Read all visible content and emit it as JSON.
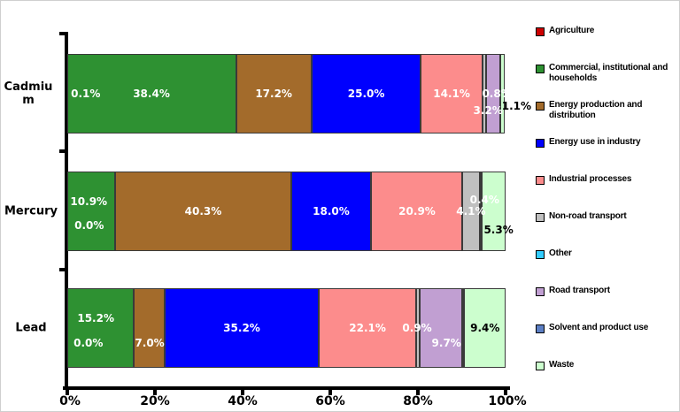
{
  "chart_data": {
    "type": "bar",
    "stacked": true,
    "orientation": "horizontal",
    "legend_position": "right",
    "xlim": [
      0,
      100
    ],
    "x_ticks": [
      "0%",
      "20%",
      "40%",
      "60%",
      "80%",
      "100%"
    ],
    "categories": [
      "Cadmium",
      "Mercury",
      "Lead"
    ],
    "series": [
      {
        "name": "Agriculture",
        "color": "#CC0000",
        "values": [
          0.1,
          0.0,
          0.0
        ]
      },
      {
        "name": "Commercial, institutional and households",
        "color": "#2E9132",
        "values": [
          38.4,
          10.9,
          15.2
        ]
      },
      {
        "name": "Energy production and distribution",
        "color": "#A36B2B",
        "values": [
          17.2,
          40.3,
          7.0
        ]
      },
      {
        "name": "Energy use in industry",
        "color": "#0000FE",
        "values": [
          25.0,
          18.0,
          35.2
        ]
      },
      {
        "name": "Industrial processes",
        "color": "#FC8C8C",
        "values": [
          14.1,
          20.9,
          22.1
        ]
      },
      {
        "name": "Non-road transport",
        "color": "#C0C0C0",
        "values": [
          0.8,
          4.1,
          0.9
        ]
      },
      {
        "name": "Other",
        "color": "#33CCFF",
        "values": [
          0.0,
          0.0,
          0.0
        ]
      },
      {
        "name": "Road transport",
        "color": "#C19FD2",
        "values": [
          3.2,
          0.4,
          9.7
        ]
      },
      {
        "name": "Solvent and product use",
        "color": "#5C7FC4",
        "values": [
          0.0,
          0.0,
          0.5
        ]
      },
      {
        "name": "Waste",
        "color": "#CCFECE",
        "values": [
          1.1,
          5.3,
          9.4
        ]
      }
    ],
    "value_labels": {
      "Cadmium": [
        {
          "text": "0.1%",
          "x_pct": 4.2,
          "dy": 0,
          "color": "#FFFFFF"
        },
        {
          "text": "38.4%",
          "x_pct": 19.2,
          "dy": 0,
          "color": "#FFFFFF"
        },
        {
          "text": "17.2%",
          "x_pct": 47.1,
          "dy": 0,
          "color": "#FFFFFF"
        },
        {
          "text": "25.0%",
          "x_pct": 68.2,
          "dy": 0,
          "color": "#FFFFFF"
        },
        {
          "text": "14.1%",
          "x_pct": 87.7,
          "dy": 0,
          "color": "#FFFFFF"
        },
        {
          "text": "0.8%",
          "x_pct": 98.0,
          "dy": 0,
          "color": "#FFFFFF"
        },
        {
          "text": "3.2%",
          "x_pct": 96.0,
          "dy": 19,
          "color": "#FFFFFF"
        },
        {
          "text": "1.1%",
          "x_pct": 102.5,
          "dy": 14,
          "color": "#000000"
        }
      ],
      "Mercury": [
        {
          "text": "10.9%",
          "x_pct": 4.9,
          "dy": -11,
          "color": "#FFFFFF"
        },
        {
          "text": "0.0%",
          "x_pct": 5.0,
          "dy": 16,
          "color": "#FFFFFF"
        },
        {
          "text": "40.3%",
          "x_pct": 31.0,
          "dy": 0,
          "color": "#FFFFFF"
        },
        {
          "text": "18.0%",
          "x_pct": 60.2,
          "dy": 0,
          "color": "#FFFFFF"
        },
        {
          "text": "20.9%",
          "x_pct": 79.8,
          "dy": 0,
          "color": "#FFFFFF"
        },
        {
          "text": "4.1%",
          "x_pct": 92.1,
          "dy": 0,
          "color": "#FFFFFF"
        },
        {
          "text": "0.4%",
          "x_pct": 95.2,
          "dy": -13,
          "color": "#FFFFFF"
        },
        {
          "text": "5.3%",
          "x_pct": 98.4,
          "dy": 21,
          "color": "#000000"
        }
      ],
      "Lead": [
        {
          "text": "15.2%",
          "x_pct": 6.5,
          "dy": -11,
          "color": "#FFFFFF"
        },
        {
          "text": "0.0%",
          "x_pct": 4.8,
          "dy": 17,
          "color": "#FFFFFF"
        },
        {
          "text": "7.0%",
          "x_pct": 18.8,
          "dy": 17,
          "color": "#FFFFFF"
        },
        {
          "text": "35.2%",
          "x_pct": 39.8,
          "dy": 0,
          "color": "#FFFFFF"
        },
        {
          "text": "22.1%",
          "x_pct": 68.5,
          "dy": 0,
          "color": "#FFFFFF"
        },
        {
          "text": "0.9%",
          "x_pct": 79.8,
          "dy": 0,
          "color": "#FFFFFF"
        },
        {
          "text": "9.7%",
          "x_pct": 86.5,
          "dy": 17,
          "color": "#FFFFFF"
        },
        {
          "text": "9.4%",
          "x_pct": 95.3,
          "dy": 0,
          "color": "#000000"
        }
      ]
    }
  }
}
